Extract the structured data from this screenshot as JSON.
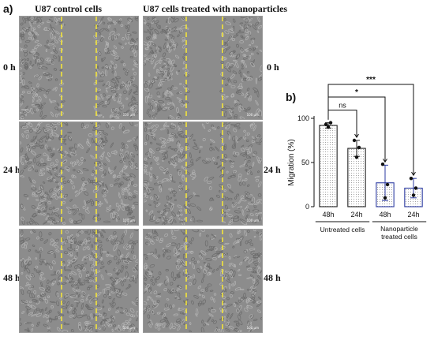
{
  "panel_a": {
    "letter": "a)",
    "columns": [
      {
        "title": "U87 control cells",
        "scenario": "control"
      },
      {
        "title": "U87 cells treated with nanoparticles",
        "scenario": "treated"
      }
    ],
    "rows": [
      {
        "label": "0 h"
      },
      {
        "label": "24 h"
      },
      {
        "label": "48 h"
      }
    ],
    "scale_bar": "100 µm",
    "colors": {
      "scratch_line": "#f2e43a",
      "image_bg": "#8c8c8c"
    }
  },
  "chart_data": {
    "type": "bar",
    "panel_letter": "b)",
    "ylabel": "Migration (%)",
    "ylim": [
      0,
      100
    ],
    "yticks": [
      0,
      50,
      100
    ],
    "categories": [
      "48h",
      "24h",
      "48h",
      "24h"
    ],
    "groups": [
      {
        "label": "Untreated cells",
        "categories": [
          0,
          1
        ]
      },
      {
        "label": "Nanoparticle treated cells",
        "categories": [
          2,
          3
        ]
      }
    ],
    "values": [
      92,
      66,
      27,
      21
    ],
    "errors": [
      3,
      9,
      20,
      11
    ],
    "points": [
      [
        93,
        95,
        90
      ],
      [
        75,
        67,
        56
      ],
      [
        48,
        25,
        10
      ],
      [
        32,
        21,
        13
      ]
    ],
    "bar_edge_colors": [
      "#222222",
      "#222222",
      "#2b3aa0",
      "#2b3aa0"
    ],
    "significance": [
      {
        "label": "ns",
        "from": 0,
        "to": 1
      },
      {
        "label": "*",
        "from": 0,
        "to": 2
      },
      {
        "label": "***",
        "from": 0,
        "to": 3
      }
    ],
    "grid": false
  }
}
